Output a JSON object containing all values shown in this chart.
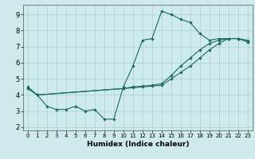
{
  "xlabel": "Humidex (Indice chaleur)",
  "xlim": [
    -0.5,
    23.5
  ],
  "ylim": [
    1.8,
    9.6
  ],
  "xticks": [
    0,
    1,
    2,
    3,
    4,
    5,
    6,
    7,
    8,
    9,
    10,
    11,
    12,
    13,
    14,
    15,
    16,
    17,
    18,
    19,
    20,
    21,
    22,
    23
  ],
  "yticks": [
    2,
    3,
    4,
    5,
    6,
    7,
    8,
    9
  ],
  "bg_color": "#ceeaea",
  "grid_color": "#aacfcf",
  "line_color": "#1a6b5a",
  "series": [
    {
      "x": [
        0,
        1,
        2,
        3,
        4,
        5,
        6,
        7,
        8,
        9,
        10,
        11,
        12,
        13,
        14,
        15,
        16,
        17,
        18,
        19,
        20,
        21,
        22,
        23
      ],
      "y": [
        4.5,
        4.0,
        3.3,
        3.1,
        3.1,
        3.3,
        3.0,
        3.1,
        2.5,
        2.5,
        4.5,
        5.8,
        7.4,
        7.5,
        9.2,
        9.0,
        8.7,
        8.5,
        7.8,
        7.4,
        7.5,
        7.5,
        7.5,
        7.3
      ]
    },
    {
      "x": [
        0,
        1,
        10,
        11,
        12,
        13,
        14,
        15,
        16,
        17,
        18,
        19,
        20,
        21,
        22,
        23
      ],
      "y": [
        4.4,
        4.0,
        4.4,
        4.45,
        4.5,
        4.55,
        4.6,
        5.0,
        5.4,
        5.8,
        6.3,
        6.8,
        7.2,
        7.5,
        7.5,
        7.3
      ]
    },
    {
      "x": [
        0,
        1,
        10,
        11,
        12,
        13,
        14,
        15,
        16,
        17,
        18,
        19,
        20,
        21,
        22,
        23
      ],
      "y": [
        4.4,
        4.0,
        4.4,
        4.5,
        4.55,
        4.6,
        4.7,
        5.2,
        5.8,
        6.3,
        6.8,
        7.2,
        7.4,
        7.5,
        7.5,
        7.4
      ]
    }
  ]
}
